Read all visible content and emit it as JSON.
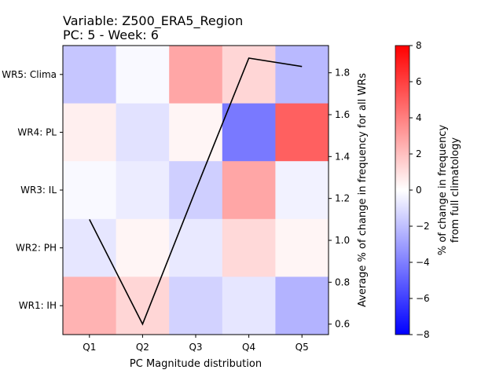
{
  "chart_data": {
    "type": "heatmap",
    "title_line1": "Variable: Z500_ERA5_Region",
    "title_line2": "PC: 5 - Week: 6",
    "xlabel": "PC Magnitude distribution",
    "x_categories": [
      "Q1",
      "Q2",
      "Q3",
      "Q4",
      "Q5"
    ],
    "y_categories": [
      "WR5: Clima",
      "WR4: PL",
      "WR3: IL",
      "WR2: PH",
      "WR1: IH"
    ],
    "matrix": [
      [
        -1.8,
        -0.2,
        2.8,
        1.3,
        -2.2
      ],
      [
        0.5,
        -0.9,
        0.3,
        -4.2,
        5.0
      ],
      [
        -0.2,
        -0.6,
        -1.5,
        2.8,
        -0.4
      ],
      [
        -0.8,
        0.3,
        -0.7,
        1.2,
        0.3
      ],
      [
        2.4,
        1.3,
        -1.4,
        -0.8,
        -2.4
      ]
    ],
    "colorbar": {
      "label_line1": "% of change in frequency",
      "label_line2": "from full climatology",
      "vmin": -8,
      "vmax": 8,
      "ticks": [
        -8,
        -6,
        -4,
        -2,
        0,
        2,
        4,
        6,
        8
      ],
      "colormap": "bwr",
      "low_color": "#0000ff",
      "mid_color": "#ffffff",
      "high_color": "#ff0000"
    },
    "line_series": {
      "ylabel": "Average % of change in frequency for all WRs",
      "x": [
        "Q1",
        "Q2",
        "Q3",
        "Q4",
        "Q5"
      ],
      "values": [
        1.1,
        0.6,
        1.24,
        1.87,
        1.83
      ],
      "ylim": [
        0.55,
        1.93
      ],
      "ticks": [
        0.6,
        0.8,
        1.0,
        1.2,
        1.4,
        1.6,
        1.8
      ],
      "color": "#000000"
    }
  }
}
